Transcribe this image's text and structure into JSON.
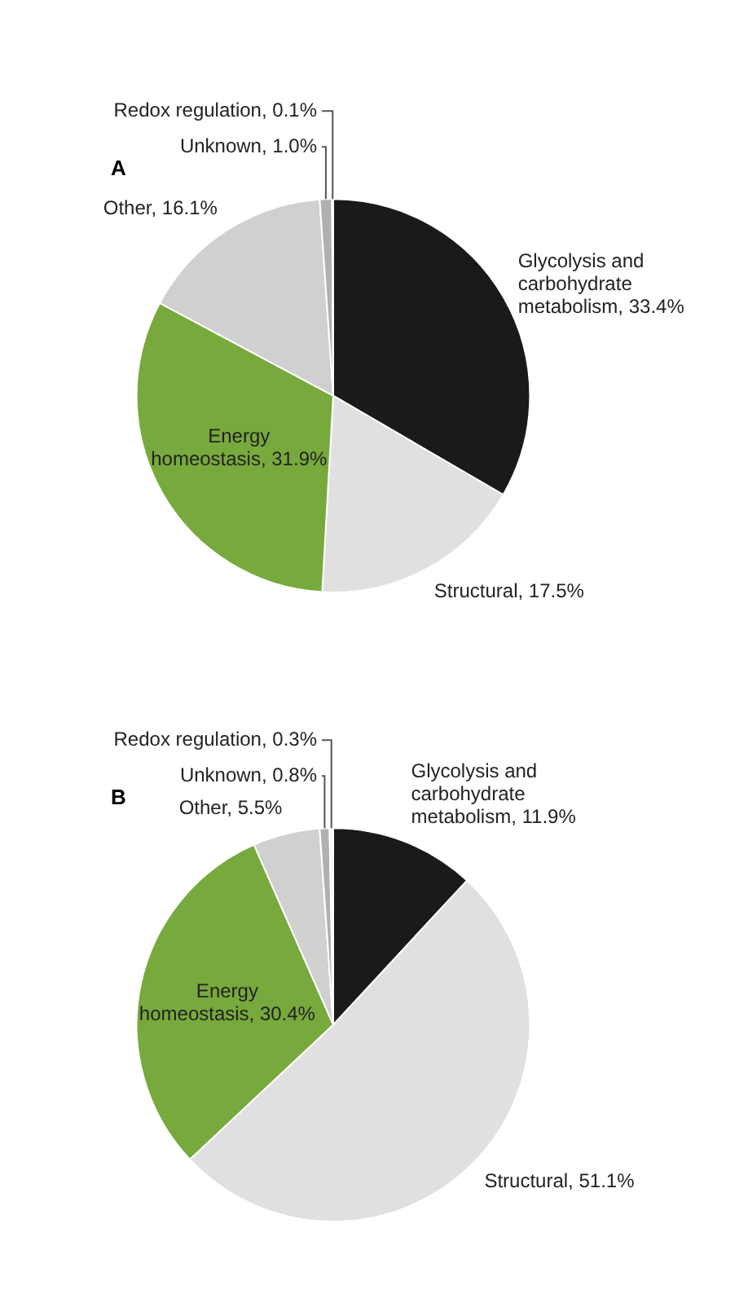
{
  "chart_data": [
    {
      "type": "pie",
      "title": "A",
      "categories": [
        "Glycolysis and carbohydrate metabolism",
        "Structural",
        "Energy homeostasis",
        "Other",
        "Unknown",
        "Redox regulation"
      ],
      "values": [
        33.4,
        17.5,
        31.9,
        16.1,
        1.0,
        0.1
      ],
      "value_labels": [
        "33.4%",
        "17.5%",
        "31.9%",
        "16.1%",
        "1.0%",
        "0.1%"
      ],
      "colors": [
        "#1a1a1a",
        "#e0e0e0",
        "#78a93c",
        "#d0d0d0",
        "#b0b0b0",
        "#f5f5f5"
      ]
    },
    {
      "type": "pie",
      "title": "B",
      "categories": [
        "Glycolysis and carbohydrate metabolism",
        "Structural",
        "Energy homeostasis",
        "Other",
        "Unknown",
        "Redox regulation"
      ],
      "values": [
        11.9,
        51.1,
        30.4,
        5.5,
        0.8,
        0.3
      ],
      "value_labels": [
        "11.9%",
        "51.1%",
        "30.4%",
        "5.5%",
        "0.8%",
        "0.3%"
      ],
      "colors": [
        "#1a1a1a",
        "#e0e0e0",
        "#78a93c",
        "#d0d0d0",
        "#b0b0b0",
        "#f5f5f5"
      ]
    }
  ]
}
